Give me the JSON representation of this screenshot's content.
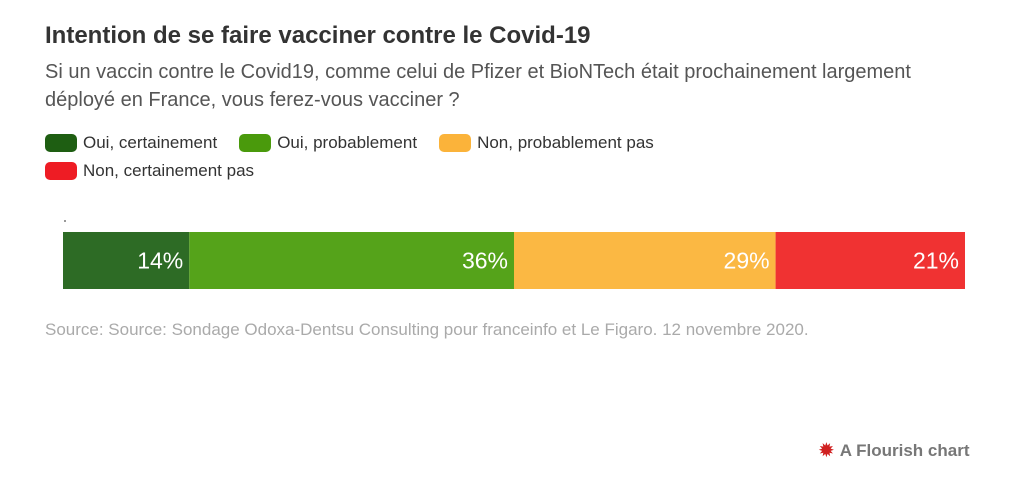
{
  "title": "Intention de se faire vacciner contre le Covid-19",
  "subtitle": "Si un vaccin contre le Covid19, comme celui de Pfizer et BioNTech était prochainement largement déployé en France, vous ferez-vous vacciner ?",
  "source": "Source: Source: Sondage Odoxa-Dentsu Consulting pour franceinfo et Le Figaro. 12 novembre 2020.",
  "credit": "A Flourish chart",
  "chart_data": {
    "type": "bar",
    "stacked": true,
    "orientation": "horizontal",
    "legend_position": "top-left",
    "xlim": [
      0,
      100
    ],
    "series": [
      {
        "name": "Oui, certainement",
        "value": 14,
        "label": "14%",
        "color": "#2d6b25",
        "legend_color": "#1e5e12"
      },
      {
        "name": "Oui, probablement",
        "value": 36,
        "label": "36%",
        "color": "#55a31a",
        "legend_color": "#4a9a0c"
      },
      {
        "name": "Non, probablement pas",
        "value": 29,
        "label": "29%",
        "color": "#fbb843",
        "legend_color": "#fbb33a"
      },
      {
        "name": "Non, certainement pas",
        "value": 21,
        "label": "21%",
        "color": "#f03232",
        "legend_color": "#ee1c24"
      }
    ]
  }
}
